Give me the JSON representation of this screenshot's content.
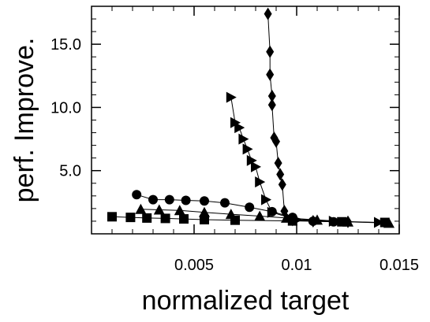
{
  "chart_data": {
    "type": "scatter",
    "title": "",
    "xlabel": "normalized target",
    "ylabel": "perf. Improve.",
    "xlim": [
      0.0,
      0.015
    ],
    "ylim": [
      0.0,
      18.0
    ],
    "xticks": [
      {
        "value": 0.005,
        "label": "0.005"
      },
      {
        "value": 0.01,
        "label": "0.01"
      },
      {
        "value": 0.015,
        "label": "0.015"
      }
    ],
    "yticks": [
      {
        "value": 5.0,
        "label": "5.0"
      },
      {
        "value": 10.0,
        "label": "10.0"
      },
      {
        "value": 15.0,
        "label": "15.0"
      }
    ],
    "grid": false,
    "series": [
      {
        "marker": "square",
        "x": [
          0.001,
          0.0019,
          0.0027,
          0.0036,
          0.0045,
          0.0055,
          0.007,
          0.0098,
          0.0122,
          0.0143
        ],
        "y": [
          1.35,
          1.3,
          1.25,
          1.22,
          1.18,
          1.12,
          1.08,
          1.02,
          0.95,
          0.9
        ]
      },
      {
        "marker": "triangle-up",
        "x": [
          0.0024,
          0.0033,
          0.0043,
          0.0055,
          0.0068,
          0.0082,
          0.0095,
          0.011,
          0.0125,
          0.0145
        ],
        "y": [
          1.95,
          1.9,
          1.85,
          1.7,
          1.55,
          1.4,
          1.25,
          1.1,
          0.95,
          0.85
        ]
      },
      {
        "marker": "circle",
        "x": [
          0.0022,
          0.003,
          0.0038,
          0.0046,
          0.0055,
          0.0065,
          0.0077,
          0.0088,
          0.0098,
          0.0108,
          0.0118
        ],
        "y": [
          3.1,
          2.7,
          2.7,
          2.65,
          2.6,
          2.45,
          2.1,
          1.75,
          1.3,
          1.0,
          0.95
        ]
      },
      {
        "marker": "triangle-right",
        "x": [
          0.0068,
          0.007,
          0.0072,
          0.0074,
          0.0076,
          0.0078,
          0.008,
          0.0082,
          0.0085,
          0.0088,
          0.01,
          0.0118,
          0.014
        ],
        "y": [
          10.8,
          8.8,
          8.4,
          7.5,
          6.7,
          5.8,
          5.3,
          4.1,
          2.7,
          1.7,
          1.1,
          1.0,
          0.9
        ]
      },
      {
        "marker": "diamond",
        "x": [
          0.0086,
          0.0087,
          0.0087,
          0.0088,
          0.0088,
          0.0089,
          0.009,
          0.0091,
          0.0092,
          0.0093,
          0.0094,
          0.0098,
          0.0108,
          0.0125
        ],
        "y": [
          17.4,
          14.4,
          12.6,
          10.9,
          10.2,
          7.6,
          7.3,
          5.6,
          4.7,
          3.9,
          1.8,
          1.1,
          1.0,
          0.95
        ]
      }
    ]
  }
}
